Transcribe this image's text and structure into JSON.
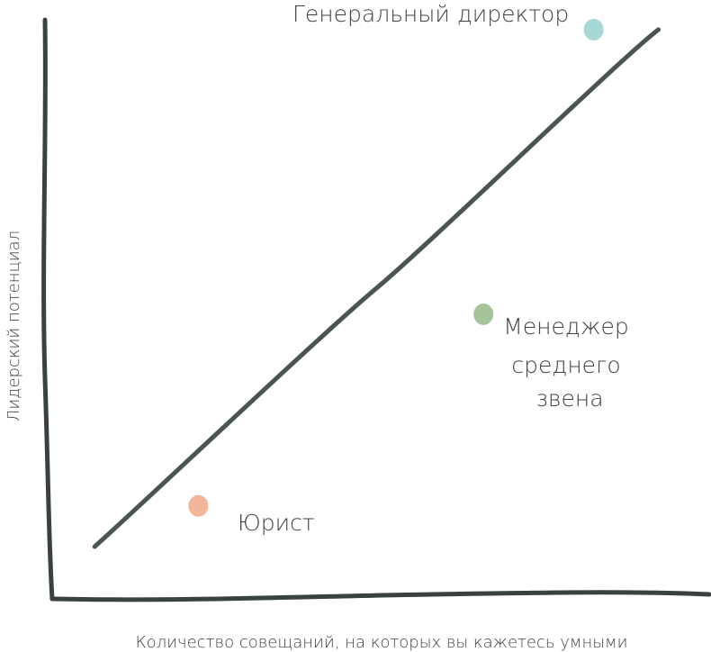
{
  "chart_data": {
    "type": "scatter",
    "title": "",
    "xlabel": "Количество совещаний, на которых вы кажетесь умными",
    "ylabel": "Лидерский потенциал",
    "xlim": [
      0,
      10
    ],
    "ylim": [
      0,
      10
    ],
    "grid": false,
    "ticks": false,
    "points": [
      {
        "label": "Генеральный директор",
        "x": 8.3,
        "y": 9.8,
        "color": "#a6d8d6"
      },
      {
        "label": "Менеджер среднего звена",
        "label_lines": [
          "Менеджер",
          "среднего",
          "звена"
        ],
        "x": 6.6,
        "y": 4.9,
        "color": "#a6c49a"
      },
      {
        "label": "Юрист",
        "x": 2.2,
        "y": 1.6,
        "color": "#f2b69a"
      }
    ],
    "trend_line": {
      "x": [
        0.6,
        9.3
      ],
      "y": [
        0.9,
        9.8
      ],
      "color": "#4a5553"
    },
    "axis_color": "#3a4241"
  }
}
